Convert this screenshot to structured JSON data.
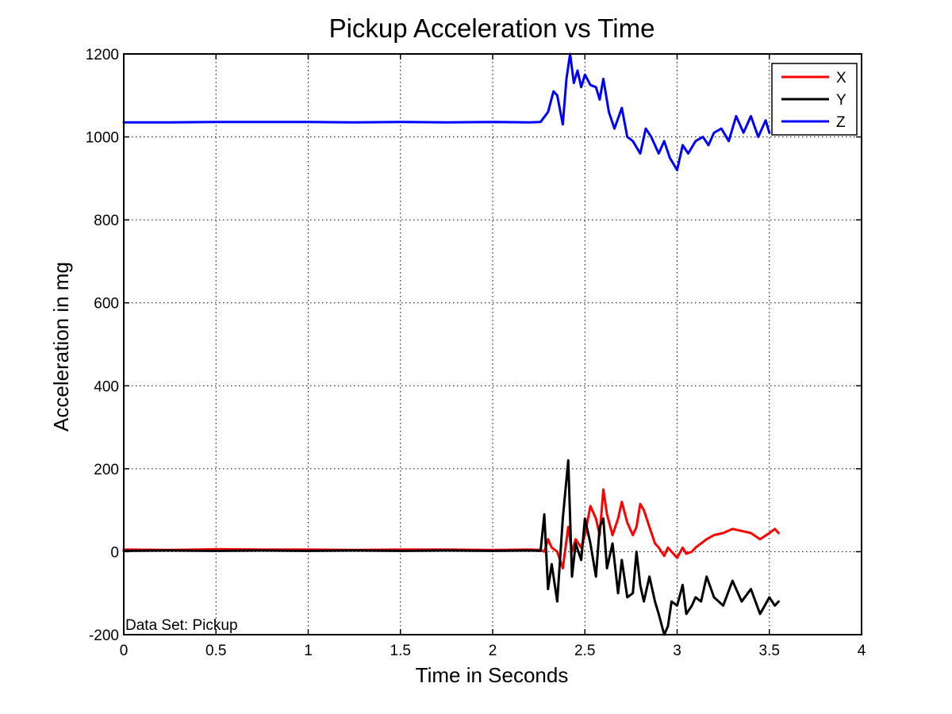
{
  "chart_data": {
    "type": "line",
    "title": "Pickup Acceleration vs Time",
    "xlabel": "Time in Seconds",
    "ylabel": "Acceleration in mg",
    "xlim": [
      0,
      4
    ],
    "ylim": [
      -200,
      1200
    ],
    "xticks": [
      0,
      0.5,
      1,
      1.5,
      2,
      2.5,
      3,
      3.5,
      4
    ],
    "xtick_labels": [
      "0",
      "0.5",
      "1",
      "1.5",
      "2",
      "2.5",
      "3",
      "3.5",
      "4"
    ],
    "yticks": [
      -200,
      0,
      200,
      400,
      600,
      800,
      1000,
      1200
    ],
    "ytick_labels": [
      "-200",
      "0",
      "200",
      "400",
      "600",
      "800",
      "1000",
      "1200"
    ],
    "grid": true,
    "grid_style": "dotted",
    "legend_position": "top-right",
    "annotation": "Data Set: Pickup",
    "series": [
      {
        "name": "X",
        "color": "#ff0000",
        "x": [
          0,
          0.25,
          0.5,
          0.75,
          1,
          1.25,
          1.5,
          1.75,
          2,
          2.2,
          2.26,
          2.28,
          2.3,
          2.32,
          2.35,
          2.38,
          2.41,
          2.43,
          2.45,
          2.48,
          2.5,
          2.53,
          2.56,
          2.58,
          2.6,
          2.62,
          2.65,
          2.68,
          2.7,
          2.73,
          2.76,
          2.78,
          2.8,
          2.82,
          2.85,
          2.88,
          2.9,
          2.93,
          2.95,
          2.97,
          3.0,
          3.03,
          3.05,
          3.08,
          3.1,
          3.13,
          3.16,
          3.2,
          3.25,
          3.3,
          3.35,
          3.4,
          3.45,
          3.5,
          3.53,
          3.55
        ],
        "y": [
          5,
          4,
          6,
          5,
          5,
          4,
          5,
          5,
          4,
          5,
          4,
          0,
          30,
          10,
          0,
          -40,
          60,
          0,
          30,
          10,
          40,
          110,
          80,
          40,
          150,
          90,
          40,
          80,
          120,
          70,
          40,
          60,
          115,
          100,
          60,
          20,
          10,
          -10,
          10,
          0,
          -15,
          10,
          -5,
          0,
          10,
          20,
          30,
          40,
          45,
          55,
          50,
          45,
          30,
          45,
          55,
          45
        ]
      },
      {
        "name": "Y",
        "color": "#000000",
        "x": [
          0,
          0.25,
          0.5,
          0.75,
          1,
          1.25,
          1.5,
          1.75,
          2,
          2.2,
          2.26,
          2.28,
          2.3,
          2.32,
          2.35,
          2.38,
          2.41,
          2.43,
          2.45,
          2.48,
          2.5,
          2.53,
          2.56,
          2.58,
          2.6,
          2.62,
          2.65,
          2.68,
          2.7,
          2.73,
          2.76,
          2.78,
          2.8,
          2.82,
          2.85,
          2.88,
          2.9,
          2.93,
          2.95,
          2.97,
          3.0,
          3.03,
          3.05,
          3.08,
          3.1,
          3.13,
          3.16,
          3.2,
          3.25,
          3.3,
          3.35,
          3.4,
          3.45,
          3.5,
          3.53,
          3.55
        ],
        "y": [
          2,
          3,
          2,
          3,
          2,
          3,
          2,
          3,
          2,
          3,
          2,
          90,
          -90,
          -30,
          -120,
          80,
          220,
          -60,
          20,
          -20,
          80,
          20,
          -60,
          60,
          80,
          -40,
          20,
          -100,
          -20,
          -110,
          -100,
          0,
          -80,
          -120,
          -60,
          -120,
          -150,
          -200,
          -180,
          -120,
          -130,
          -80,
          -150,
          -130,
          -110,
          -120,
          -60,
          -110,
          -130,
          -70,
          -120,
          -90,
          -150,
          -110,
          -130,
          -120
        ]
      },
      {
        "name": "Z",
        "color": "#0000ff",
        "x": [
          0,
          0.25,
          0.5,
          0.75,
          1,
          1.25,
          1.5,
          1.75,
          2,
          2.2,
          2.26,
          2.3,
          2.33,
          2.35,
          2.38,
          2.4,
          2.42,
          2.44,
          2.46,
          2.48,
          2.5,
          2.53,
          2.56,
          2.58,
          2.6,
          2.63,
          2.66,
          2.7,
          2.73,
          2.76,
          2.8,
          2.83,
          2.86,
          2.9,
          2.93,
          2.96,
          3.0,
          3.03,
          3.06,
          3.1,
          3.14,
          3.17,
          3.2,
          3.24,
          3.28,
          3.32,
          3.36,
          3.4,
          3.44,
          3.48,
          3.5
        ],
        "y": [
          1035,
          1035,
          1036,
          1036,
          1036,
          1035,
          1036,
          1035,
          1036,
          1035,
          1036,
          1060,
          1110,
          1100,
          1030,
          1140,
          1200,
          1130,
          1160,
          1120,
          1150,
          1125,
          1120,
          1090,
          1140,
          1060,
          1020,
          1070,
          1000,
          990,
          960,
          1020,
          1000,
          960,
          990,
          950,
          920,
          980,
          960,
          990,
          1000,
          980,
          1010,
          1020,
          990,
          1050,
          1010,
          1050,
          1000,
          1040,
          1010
        ]
      }
    ]
  }
}
